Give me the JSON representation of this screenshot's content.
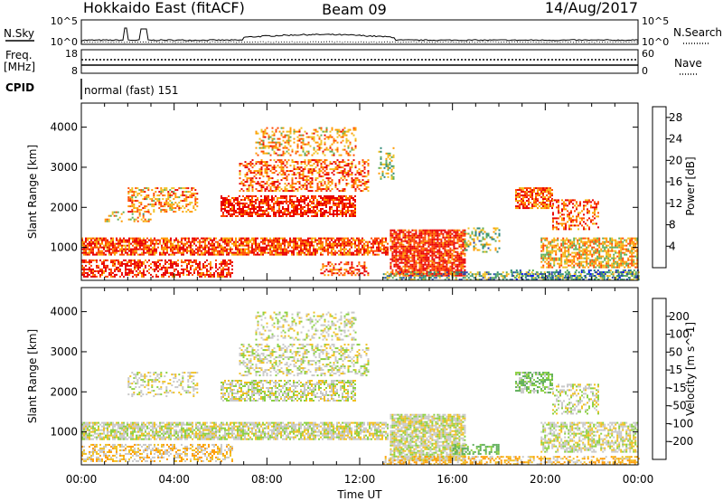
{
  "header": {
    "radar": "Hokkaido East (fitACF)",
    "beam": "Beam 09",
    "date": "14/Aug/2017"
  },
  "nsky_panel": {
    "left_label": "N.Sky",
    "right_label": "N.Search",
    "left_ticks": [
      "10^5",
      "10^0"
    ],
    "right_ticks": [
      "10^5",
      "10^0"
    ]
  },
  "freq_panel": {
    "left_label_1": "Freq.",
    "left_label_2": "[MHz]",
    "right_label": "Nave",
    "left_ticks": [
      "18",
      "8"
    ],
    "right_ticks": [
      "60",
      "0"
    ]
  },
  "cpid_panel": {
    "label": "CPID",
    "text": "normal (fast) 151"
  },
  "chart_data": [
    {
      "type": "heatmap",
      "name": "power",
      "ylabel": "Slant Range [km]",
      "xlabel": "Time UT",
      "xlim": [
        "00:00",
        "24:00"
      ],
      "ylim": [
        180,
        4600
      ],
      "x_ticks": [
        "00:00",
        "04:00",
        "08:00",
        "12:00",
        "16:00",
        "20:00",
        "00:00"
      ],
      "y_ticks": [
        1000,
        2000,
        3000,
        4000
      ],
      "colorbar": {
        "label": "Power [dB]",
        "ticks": [
          4,
          8,
          12,
          16,
          20,
          24,
          28
        ],
        "range": [
          0,
          30
        ],
        "colors": [
          "#0010ff",
          "#2a44b0",
          "#2f8a78",
          "#5fae5a",
          "#f0c020",
          "#ff9a00",
          "#ff4a00",
          "#e80000"
        ]
      },
      "scatter_regions": [
        {
          "t": [
            0.0,
            13.2
          ],
          "r": [
            800,
            1250
          ],
          "value": 25,
          "density": 0.75
        },
        {
          "t": [
            0.0,
            6.5
          ],
          "r": [
            250,
            700
          ],
          "value": 27,
          "density": 0.55
        },
        {
          "t": [
            10.3,
            12.4
          ],
          "r": [
            300,
            650
          ],
          "value": 26,
          "density": 0.45
        },
        {
          "t": [
            13.3,
            16.5
          ],
          "r": [
            300,
            1450
          ],
          "value": 27,
          "density": 0.8
        },
        {
          "t": [
            16.5,
            18.0
          ],
          "r": [
            900,
            1500
          ],
          "value": 14,
          "density": 0.4
        },
        {
          "t": [
            13.0,
            24.0
          ],
          "r": [
            190,
            400
          ],
          "value": 12,
          "density": 0.5
        },
        {
          "t": [
            6.0,
            11.8
          ],
          "r": [
            1800,
            2300
          ],
          "value": 28,
          "density": 0.7
        },
        {
          "t": [
            6.8,
            12.4
          ],
          "r": [
            2400,
            3200
          ],
          "value": 24,
          "density": 0.45
        },
        {
          "t": [
            7.5,
            11.8
          ],
          "r": [
            3300,
            4000
          ],
          "value": 20,
          "density": 0.35
        },
        {
          "t": [
            2.0,
            5.0
          ],
          "r": [
            1900,
            2500
          ],
          "value": 21,
          "density": 0.45
        },
        {
          "t": [
            1.0,
            3.0
          ],
          "r": [
            1650,
            1900
          ],
          "value": 18,
          "density": 0.3
        },
        {
          "t": [
            12.8,
            13.5
          ],
          "r": [
            2700,
            3500
          ],
          "value": 15,
          "density": 0.4
        },
        {
          "t": [
            18.7,
            20.3
          ],
          "r": [
            2000,
            2500
          ],
          "value": 24,
          "density": 0.75
        },
        {
          "t": [
            20.3,
            22.3
          ],
          "r": [
            1450,
            2200
          ],
          "value": 24,
          "density": 0.45
        },
        {
          "t": [
            19.8,
            24.0
          ],
          "r": [
            500,
            1250
          ],
          "value": 19,
          "density": 0.65
        },
        {
          "t": [
            18.5,
            24.0
          ],
          "r": [
            190,
            450
          ],
          "value": 9,
          "density": 0.35
        }
      ]
    },
    {
      "type": "heatmap",
      "name": "velocity",
      "ylabel": "Slant Range [km]",
      "xlabel": "Time UT",
      "xlim": [
        "00:00",
        "24:00"
      ],
      "ylim": [
        180,
        4600
      ],
      "x_ticks": [
        "00:00",
        "04:00",
        "08:00",
        "12:00",
        "16:00",
        "20:00",
        "00:00"
      ],
      "y_ticks": [
        1000,
        2000,
        3000,
        4000
      ],
      "colorbar": {
        "label": "Velocity [m s^-1]",
        "ticks": [
          200,
          100,
          50,
          15,
          -15,
          -50,
          -100,
          -200
        ],
        "range": [
          -250,
          250
        ],
        "colors": [
          "#2030a0",
          "#2a8a7a",
          "#5fae5a",
          "#8ad040",
          "#c8c8c8",
          "#f0c020",
          "#ff9a00",
          "#ff5000",
          "#e80000"
        ]
      },
      "scatter_regions": [
        {
          "t": [
            0.0,
            13.2
          ],
          "r": [
            800,
            1250
          ],
          "value": 0,
          "density": 0.75
        },
        {
          "t": [
            0.0,
            6.5
          ],
          "r": [
            250,
            700
          ],
          "value": -20,
          "density": 0.5
        },
        {
          "t": [
            13.3,
            16.5
          ],
          "r": [
            300,
            1450
          ],
          "value": 0,
          "density": 0.8
        },
        {
          "t": [
            6.0,
            11.8
          ],
          "r": [
            1800,
            2300
          ],
          "value": 0,
          "density": 0.6
        },
        {
          "t": [
            6.8,
            12.4
          ],
          "r": [
            2400,
            3200
          ],
          "value": 0,
          "density": 0.4
        },
        {
          "t": [
            7.5,
            11.8
          ],
          "r": [
            3300,
            4000
          ],
          "value": 0,
          "density": 0.3
        },
        {
          "t": [
            2.0,
            5.0
          ],
          "r": [
            1900,
            2500
          ],
          "value": 0,
          "density": 0.4
        },
        {
          "t": [
            18.7,
            20.3
          ],
          "r": [
            2000,
            2500
          ],
          "value": 30,
          "density": 0.6
        },
        {
          "t": [
            20.3,
            22.3
          ],
          "r": [
            1450,
            2200
          ],
          "value": 0,
          "density": 0.4
        },
        {
          "t": [
            19.8,
            24.0
          ],
          "r": [
            500,
            1250
          ],
          "value": 0,
          "density": 0.6
        },
        {
          "t": [
            16.0,
            18.0
          ],
          "r": [
            450,
            700
          ],
          "value": 45,
          "density": 0.5
        },
        {
          "t": [
            13.0,
            24.0
          ],
          "r": [
            190,
            400
          ],
          "value": -30,
          "density": 0.5
        }
      ]
    }
  ]
}
